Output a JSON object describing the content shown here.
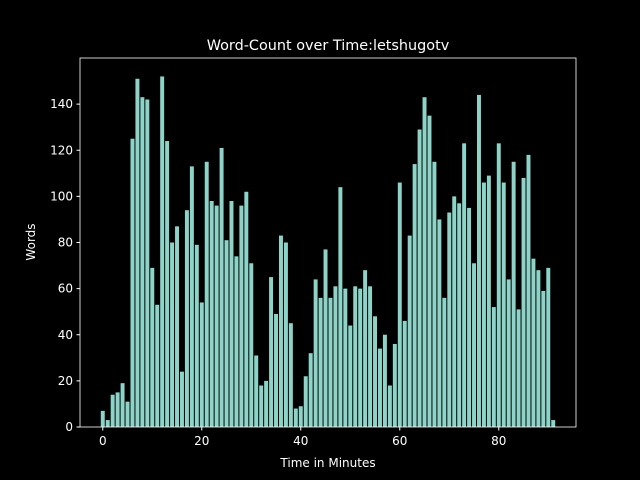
{
  "chart_data": {
    "type": "bar",
    "title": "Word-Count over Time:letshugotv",
    "x_label": "Time in Minutes",
    "y_label": "Words",
    "x": [
      0,
      1,
      2,
      3,
      4,
      5,
      6,
      7,
      8,
      9,
      10,
      11,
      12,
      13,
      14,
      15,
      16,
      17,
      18,
      19,
      20,
      21,
      22,
      23,
      24,
      25,
      26,
      27,
      28,
      29,
      30,
      31,
      32,
      33,
      34,
      35,
      36,
      37,
      38,
      39,
      40,
      41,
      42,
      43,
      44,
      45,
      46,
      47,
      48,
      49,
      50,
      51,
      52,
      53,
      54,
      55,
      56,
      57,
      58,
      59,
      60,
      61,
      62,
      63,
      64,
      65,
      66,
      67,
      68,
      69,
      70,
      71,
      72,
      73,
      74,
      75,
      76,
      77,
      78,
      79,
      80,
      81,
      82,
      83,
      84,
      85,
      86,
      87,
      88,
      89,
      90,
      91
    ],
    "values": [
      7,
      3,
      14,
      15,
      19,
      11,
      125,
      151,
      143,
      142,
      69,
      53,
      152,
      124,
      80,
      87,
      24,
      94,
      113,
      79,
      54,
      115,
      98,
      96,
      121,
      81,
      98,
      74,
      96,
      102,
      71,
      31,
      18,
      20,
      65,
      49,
      83,
      80,
      45,
      8,
      9,
      22,
      32,
      64,
      56,
      77,
      56,
      61,
      104,
      60,
      44,
      61,
      60,
      68,
      61,
      48,
      34,
      40,
      18,
      36,
      106,
      46,
      83,
      114,
      129,
      143,
      135,
      115,
      90,
      56,
      93,
      100,
      97,
      123,
      95,
      71,
      144,
      106,
      109,
      52,
      123,
      106,
      64,
      115,
      51,
      108,
      118,
      73,
      68,
      59,
      69,
      3
    ],
    "color": "#8dd3c7",
    "bar_width": 0.8,
    "xlim": [
      -4.6,
      95.6
    ],
    "ylim": [
      0,
      160
    ],
    "xticks": [
      0,
      20,
      40,
      60,
      80
    ],
    "yticks": [
      0,
      20,
      40,
      60,
      80,
      100,
      120,
      140
    ]
  }
}
